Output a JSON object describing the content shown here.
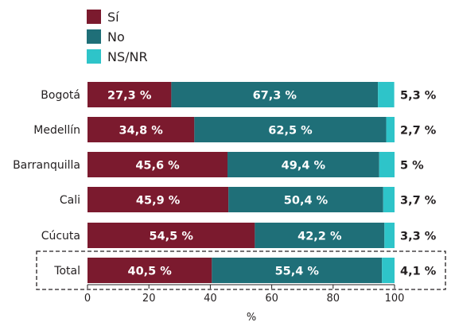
{
  "chart_data": {
    "type": "bar",
    "orientation": "horizontal",
    "stacked": true,
    "categories": [
      "Bogotá",
      "Medellín",
      "Barranquilla",
      "Cali",
      "Cúcuta",
      "Total"
    ],
    "series": [
      {
        "name": "Sí",
        "color": "#7b1a2e",
        "values": [
          27.3,
          34.8,
          45.6,
          45.9,
          54.5,
          40.5
        ],
        "labels": [
          "27,3 %",
          "34,8 %",
          "45,6 %",
          "45,9 %",
          "54,5 %",
          "40,5 %"
        ]
      },
      {
        "name": "No",
        "color": "#1f6f78",
        "values": [
          67.3,
          62.5,
          49.4,
          50.4,
          42.2,
          55.4
        ],
        "labels": [
          "67,3 %",
          "62,5 %",
          "49,4 %",
          "50,4 %",
          "42,2 %",
          "55,4 %"
        ]
      },
      {
        "name": "NS/NR",
        "color": "#2ec4c9",
        "values": [
          5.3,
          2.7,
          5.0,
          3.7,
          3.3,
          4.1
        ],
        "labels": [
          "5,3 %",
          "2,7 %",
          "5 %",
          "3,7 %",
          "3,3 %",
          "4,1 %"
        ]
      }
    ],
    "xlabel": "%",
    "xlim": [
      0,
      100
    ],
    "xticks": [
      "0",
      "20",
      "40",
      "60",
      "80",
      "100"
    ],
    "legend_position": "top-left",
    "highlighted_category": "Total",
    "grid": false
  }
}
